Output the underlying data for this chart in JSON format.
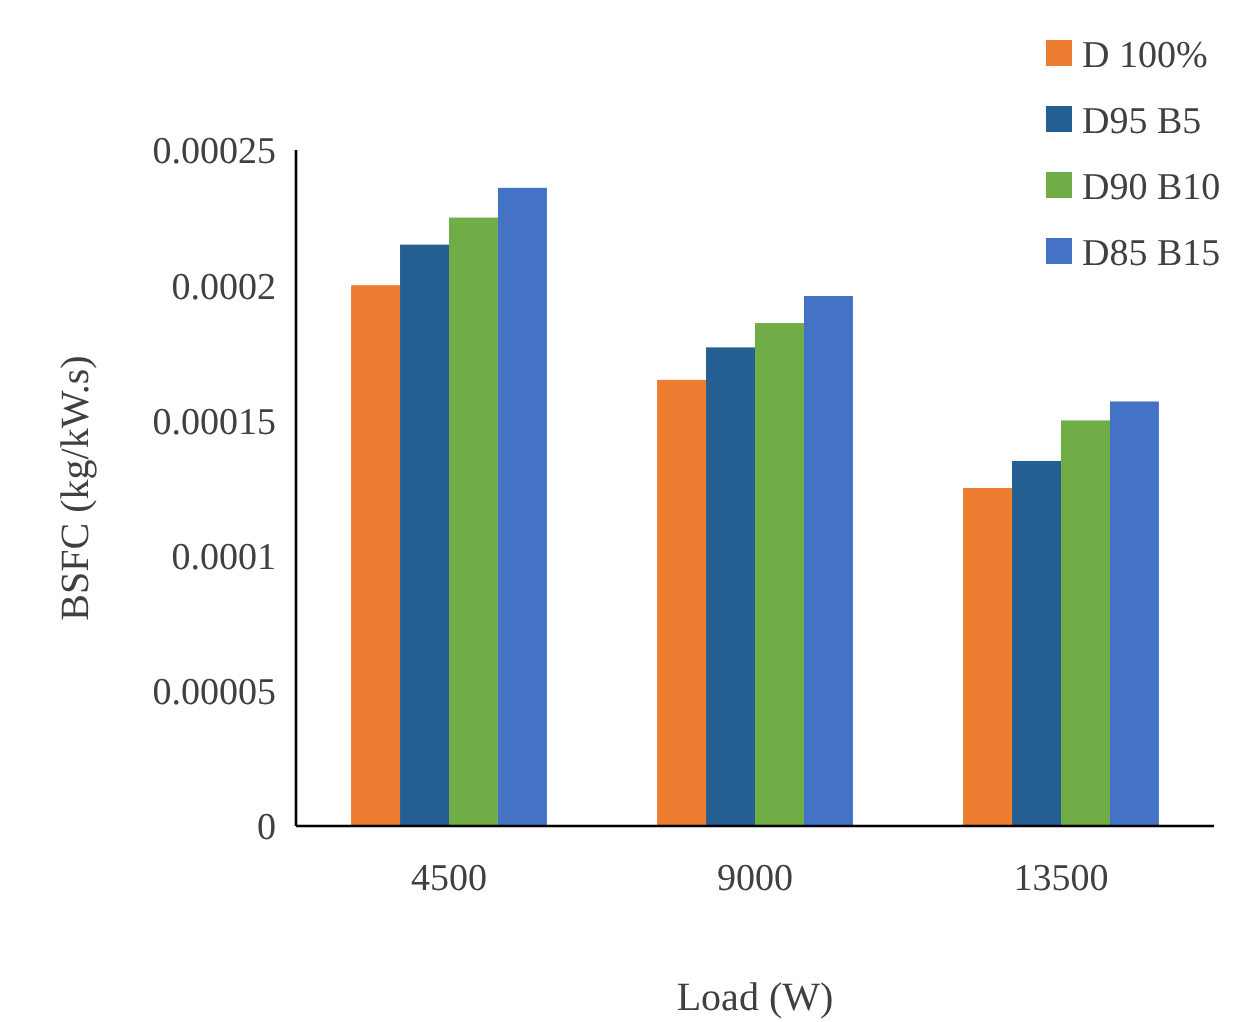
{
  "chart_data": {
    "type": "bar",
    "xlabel": "Load (W)",
    "ylabel": "BSFC (kg/kW.s)",
    "categories": [
      "4500",
      "9000",
      "13500"
    ],
    "series": [
      {
        "name": "D 100%",
        "color": "#ed7d31",
        "values": [
          0.0002,
          0.000165,
          0.000125
        ]
      },
      {
        "name": "D95 B5",
        "color": "#255e91",
        "values": [
          0.000215,
          0.000177,
          0.000135
        ]
      },
      {
        "name": "D90 B10",
        "color": "#70ad47",
        "values": [
          0.000225,
          0.000186,
          0.00015
        ]
      },
      {
        "name": "D85 B15",
        "color": "#4472c4",
        "values": [
          0.000236,
          0.000196,
          0.000157
        ]
      }
    ],
    "ylim": [
      0,
      0.00025
    ],
    "yticks": [
      0,
      {
        "value": 5e-05,
        "label": "0.00005"
      },
      0.0001,
      0.00015,
      0.0002,
      0.00025
    ],
    "grid": false,
    "legend": "top right"
  }
}
